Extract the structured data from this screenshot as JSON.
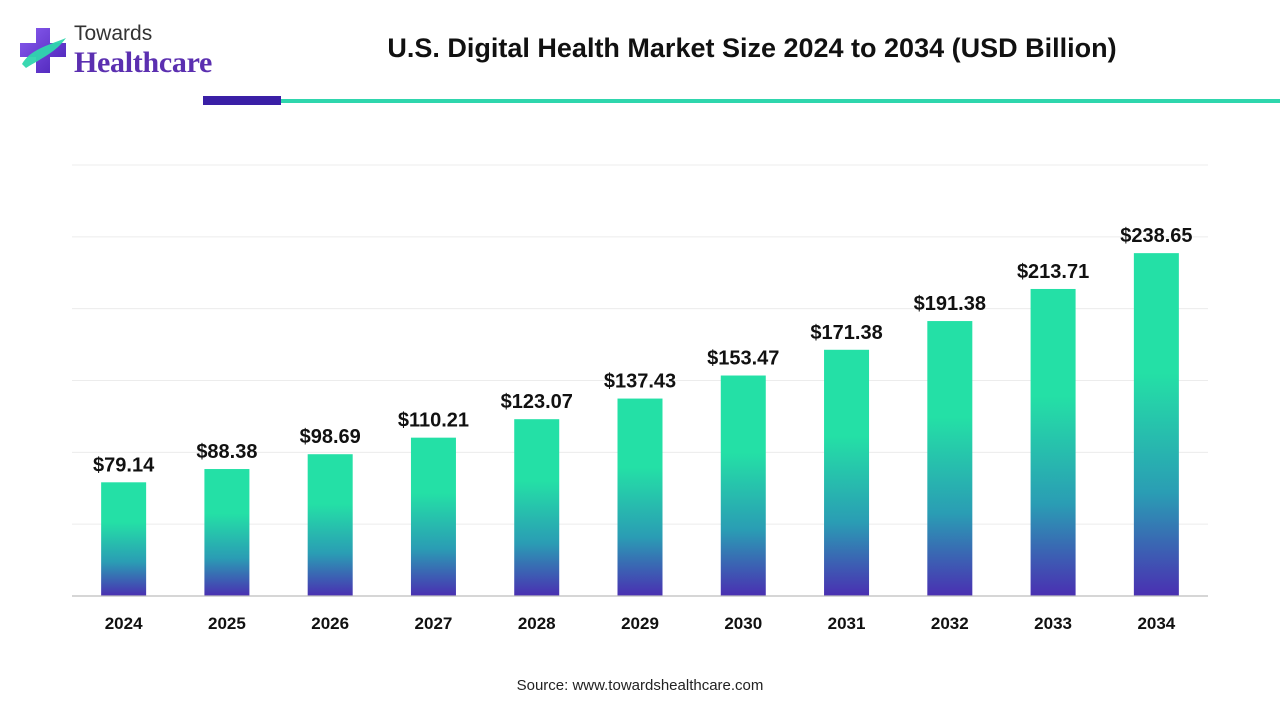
{
  "brand": {
    "name_top": "Towards",
    "name_bottom": "Healthcare"
  },
  "colors": {
    "bar_top": "#24e0a6",
    "bar_mid": "#2a9db4",
    "bar_bottom": "#4a2fb2",
    "accent_purple": "#3a1fa6",
    "accent_teal": "#2fd6ad",
    "brand_purple": "#5b2fb0"
  },
  "source": "Source: www.towardshealthcare.com",
  "chart_data": {
    "type": "bar",
    "title": "U.S. Digital Health Market Size 2024 to 2034 (USD Billion)",
    "xlabel": "",
    "ylabel": "",
    "categories": [
      "2024",
      "2025",
      "2026",
      "2027",
      "2028",
      "2029",
      "2030",
      "2031",
      "2032",
      "2033",
      "2034"
    ],
    "values": [
      79.14,
      88.38,
      98.69,
      110.21,
      123.07,
      137.43,
      153.47,
      171.38,
      191.38,
      213.71,
      238.65
    ],
    "value_labels": [
      "$79.14",
      "$88.38",
      "$98.69",
      "$110.21",
      "$123.07",
      "$137.43",
      "$153.47",
      "$171.38",
      "$191.38",
      "$213.71",
      "$238.65"
    ],
    "ylim": [
      0,
      300
    ],
    "grid": true,
    "legend": "none"
  }
}
